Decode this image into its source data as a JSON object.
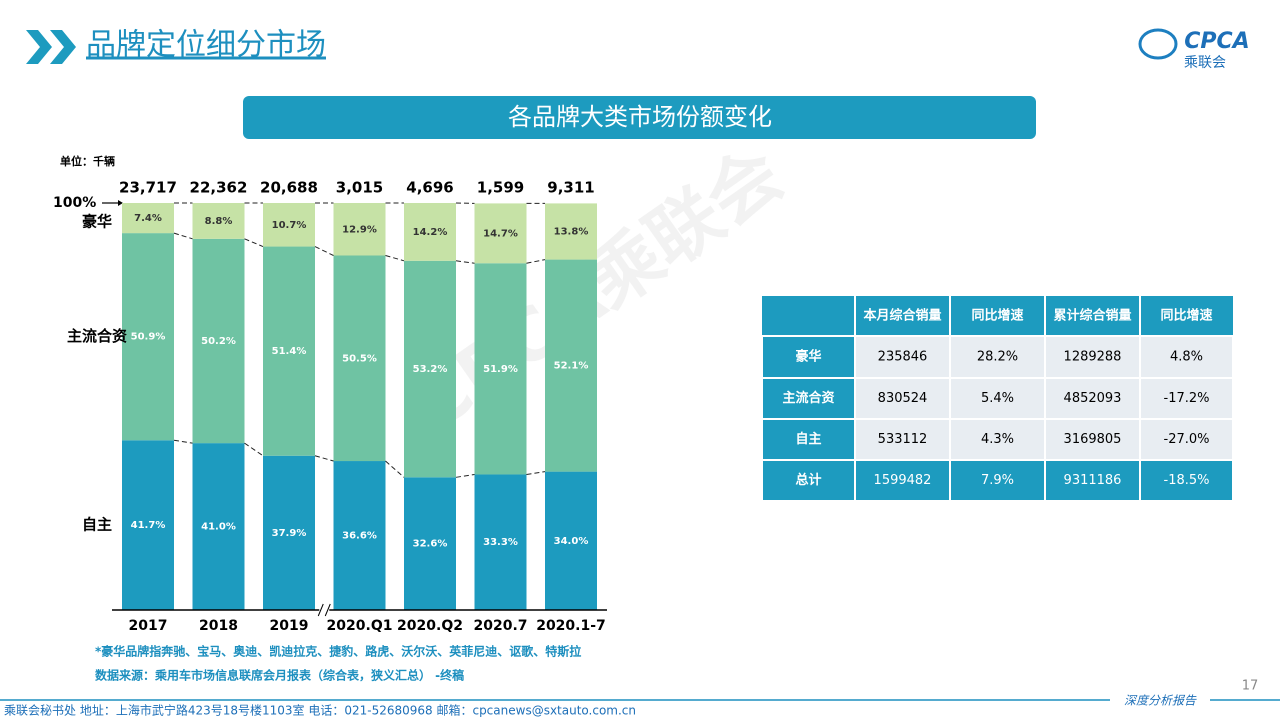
{
  "header": {
    "title": "品牌定位细分市场",
    "logo": "CPCA",
    "logo_sub": "乘联会"
  },
  "chart_data": {
    "type": "bar",
    "stacked": true,
    "title": "各品牌大类市场份额变化",
    "unit_label": "单位：千辆",
    "categories": [
      "2017",
      "2018",
      "2019",
      "2020.Q1",
      "2020.Q2",
      "2020.7",
      "2020.1-7"
    ],
    "series": [
      {
        "name": "自主",
        "color": "#1d9bbf",
        "values": [
          41.7,
          41.0,
          37.9,
          36.6,
          32.6,
          33.3,
          34.0
        ],
        "value_labels": [
          "41.7%",
          "41.0%",
          "37.9%",
          "36.6%",
          "32.6%",
          "33.3%",
          "34.0%"
        ]
      },
      {
        "name": "主流合资",
        "color": "#6fc3a3",
        "values": [
          50.9,
          50.2,
          51.4,
          50.5,
          53.2,
          51.9,
          52.1
        ],
        "value_labels": [
          "50.9%",
          "50.2%",
          "51.4%",
          "50.5%",
          "53.2%",
          "51.9%",
          "52.1%"
        ]
      },
      {
        "name": "豪华",
        "color": "#c6e2a6",
        "values": [
          7.4,
          8.8,
          10.7,
          12.9,
          14.2,
          14.7,
          13.8
        ],
        "value_labels": [
          "7.4%",
          "8.8%",
          "10.7%",
          "12.9%",
          "14.2%",
          "14.7%",
          "13.8%"
        ]
      }
    ],
    "totals": {
      "values": [
        23717,
        22362,
        20688,
        3015,
        4696,
        1599,
        9311
      ],
      "value_labels": [
        "23,717",
        "22,362",
        "20,688",
        "3,015",
        "4,696",
        "1,599",
        "9,311"
      ]
    },
    "ylim": [
      0,
      100
    ],
    "yticks": [
      {
        "value": 100,
        "label": "100%"
      }
    ],
    "notes": [
      "*豪华品牌指奔驰、宝马、奥迪、凯迪拉克、捷豹、路虎、沃尔沃、英菲尼迪、讴歌、特斯拉",
      "数据来源：乘用车市场信息联席会月报表（综合表，狭义汇总） -终稿"
    ]
  },
  "table": {
    "header": [
      "本月综合销量",
      "同比增速",
      "累计综合销量",
      "同比增速"
    ],
    "rows": [
      [
        "豪华",
        "235846",
        "28.2%",
        "1289288",
        "4.8%"
      ],
      [
        "主流合资",
        "830524",
        "5.4%",
        "4852093",
        "-17.2%"
      ],
      [
        "自主",
        "533112",
        "4.3%",
        "3169805",
        "-27.0%"
      ],
      [
        "总计",
        "1599482",
        "7.9%",
        "9311186",
        "-18.5%"
      ]
    ]
  },
  "watermark": "CPCA乘联会",
  "footer": {
    "address": "乘联会秘书处   地址：上海市武宁路423号18号楼1103室   电话：021-52680968   邮箱：cpcanews@sxtauto.com.cn",
    "report": "深度分析报告",
    "page": "17"
  }
}
